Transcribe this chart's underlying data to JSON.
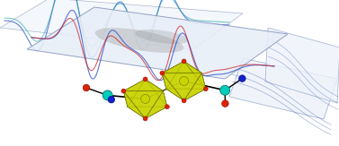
{
  "bg_color": "#ffffff",
  "plane_color": "#e8eef8",
  "plane_edge_color": "#8899bb",
  "octahedron_color": "#c8d400",
  "sphere_yellow_color": "#c8cc00",
  "sphere_cyan_color": "#00ccbb",
  "sphere_red_color": "#dd2200",
  "sphere_blue_color": "#1122cc",
  "epr_blue_color": "#3355cc",
  "epr_red_color": "#cc2222",
  "epr_cyan_color": "#22aaaa",
  "shadow_color": "#888888"
}
